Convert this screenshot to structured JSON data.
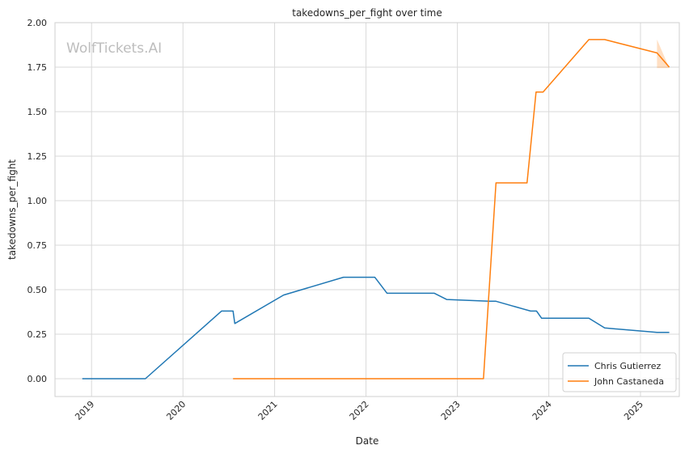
{
  "chart_data": {
    "type": "line",
    "title": "takedowns_per_fight over time",
    "xlabel": "Date",
    "ylabel": "takedowns_per_fight",
    "watermark": "WolfTickets.AI",
    "x_axis": "date",
    "xlim": [
      "2018-08-08",
      "2025-06-05"
    ],
    "ylim": [
      -0.1,
      2.0
    ],
    "xticks": [
      {
        "label": "2019",
        "value": "2019-01-01"
      },
      {
        "label": "2020",
        "value": "2020-01-01"
      },
      {
        "label": "2021",
        "value": "2021-01-01"
      },
      {
        "label": "2022",
        "value": "2022-01-01"
      },
      {
        "label": "2023",
        "value": "2023-01-01"
      },
      {
        "label": "2024",
        "value": "2024-01-01"
      },
      {
        "label": "2025",
        "value": "2025-01-01"
      }
    ],
    "yticks": [
      "0.00",
      "0.25",
      "0.50",
      "0.75",
      "1.00",
      "1.25",
      "1.50",
      "1.75",
      "2.00"
    ],
    "grid": true,
    "legend_position": "bottom-right",
    "series": [
      {
        "name": "Chris Gutierrez",
        "color": "#1f77b4",
        "points": [
          [
            "2018-11-25",
            0.0
          ],
          [
            "2019-08-04",
            0.0
          ],
          [
            "2020-06-03",
            0.38
          ],
          [
            "2020-07-19",
            0.38
          ],
          [
            "2020-07-26",
            0.31
          ],
          [
            "2021-02-06",
            0.47
          ],
          [
            "2021-10-03",
            0.57
          ],
          [
            "2022-02-05",
            0.57
          ],
          [
            "2022-03-26",
            0.48
          ],
          [
            "2022-10-01",
            0.48
          ],
          [
            "2022-11-19",
            0.445
          ],
          [
            "2023-05-08",
            0.435
          ],
          [
            "2023-06-04",
            0.435
          ],
          [
            "2023-10-20",
            0.38
          ],
          [
            "2023-11-13",
            0.38
          ],
          [
            "2023-12-03",
            0.34
          ],
          [
            "2024-06-09",
            0.34
          ],
          [
            "2024-08-11",
            0.285
          ],
          [
            "2025-03-08",
            0.26
          ],
          [
            "2025-04-26",
            0.26
          ]
        ]
      },
      {
        "name": "John Castaneda",
        "color": "#ff7f0e",
        "points": [
          [
            "2020-07-19",
            0.0
          ],
          [
            "2023-04-15",
            0.0
          ],
          [
            "2023-06-04",
            1.1
          ],
          [
            "2023-10-06",
            1.1
          ],
          [
            "2023-11-11",
            1.61
          ],
          [
            "2023-12-09",
            1.61
          ],
          [
            "2024-06-09",
            1.905
          ],
          [
            "2024-08-11",
            1.905
          ],
          [
            "2025-03-08",
            1.83
          ],
          [
            "2025-04-26",
            1.75
          ]
        ],
        "band": [
          [
            "2025-03-08",
            1.745,
            1.905
          ],
          [
            "2025-04-26",
            1.745,
            1.745
          ]
        ]
      }
    ]
  }
}
